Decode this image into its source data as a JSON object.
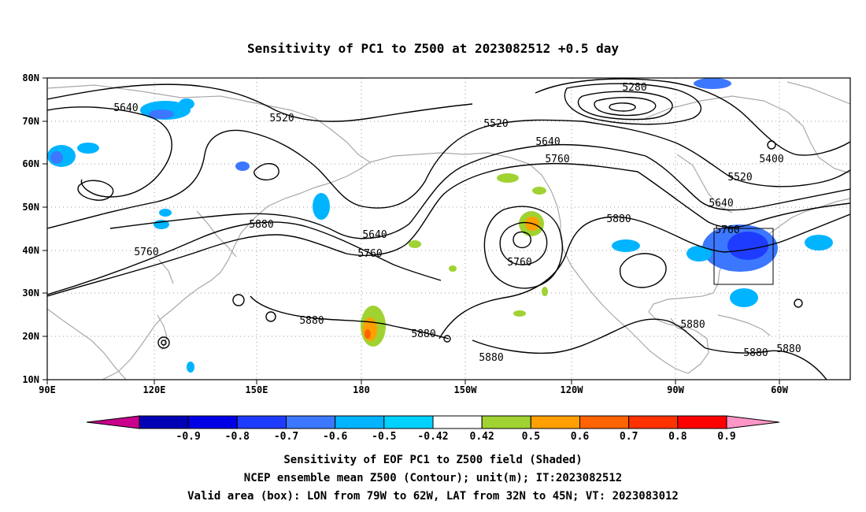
{
  "title": "Sensitivity of PC1 to Z500 at 2023082512 +0.5 day",
  "map": {
    "lon_range_deg_east": [
      90,
      310
    ],
    "lat_range_deg": [
      10,
      80
    ],
    "grid": "dotted",
    "lat_ticks": [
      "80N",
      "70N",
      "60N",
      "50N",
      "40N",
      "30N",
      "20N",
      "10N"
    ],
    "lon_ticks": [
      "90E",
      "120E",
      "150E",
      "180",
      "150W",
      "120W",
      "90W",
      "60W"
    ],
    "valid_box": {
      "lon": [
        "79W",
        "62W"
      ],
      "lat": [
        "32N",
        "45N"
      ]
    },
    "contour_labels": [
      "5640",
      "5520",
      "5520",
      "5280",
      "5640",
      "5760",
      "5400",
      "5520",
      "5640",
      "5880",
      "5760",
      "5880",
      "5640",
      "5760",
      "5760",
      "5880",
      "5880",
      "5880",
      "5880",
      "5880",
      "5880",
      "5760"
    ]
  },
  "colorbar": {
    "labels": [
      "-0.9",
      "-0.8",
      "-0.7",
      "-0.6",
      "-0.5",
      "-0.42",
      "0.42",
      "0.5",
      "0.6",
      "0.7",
      "0.8",
      "0.9"
    ],
    "colors": [
      "#c8008c",
      "#0000b4",
      "#0000e6",
      "#1e3cff",
      "#3c78ff",
      "#00b4ff",
      "#00d2ff",
      "#ffffff",
      "#a0d232",
      "#ffa000",
      "#ff6400",
      "#ff3200",
      "#ff0000",
      "#ff96c8"
    ]
  },
  "captions": [
    "Sensitivity of EOF PC1 to Z500 field (Shaded)",
    "NCEP ensemble mean Z500 (Contour); unit(m); IT:2023082512",
    "Valid area (box): LON from 79W to 62W, LAT from 32N to 45N; VT: 2023083012"
  ]
}
